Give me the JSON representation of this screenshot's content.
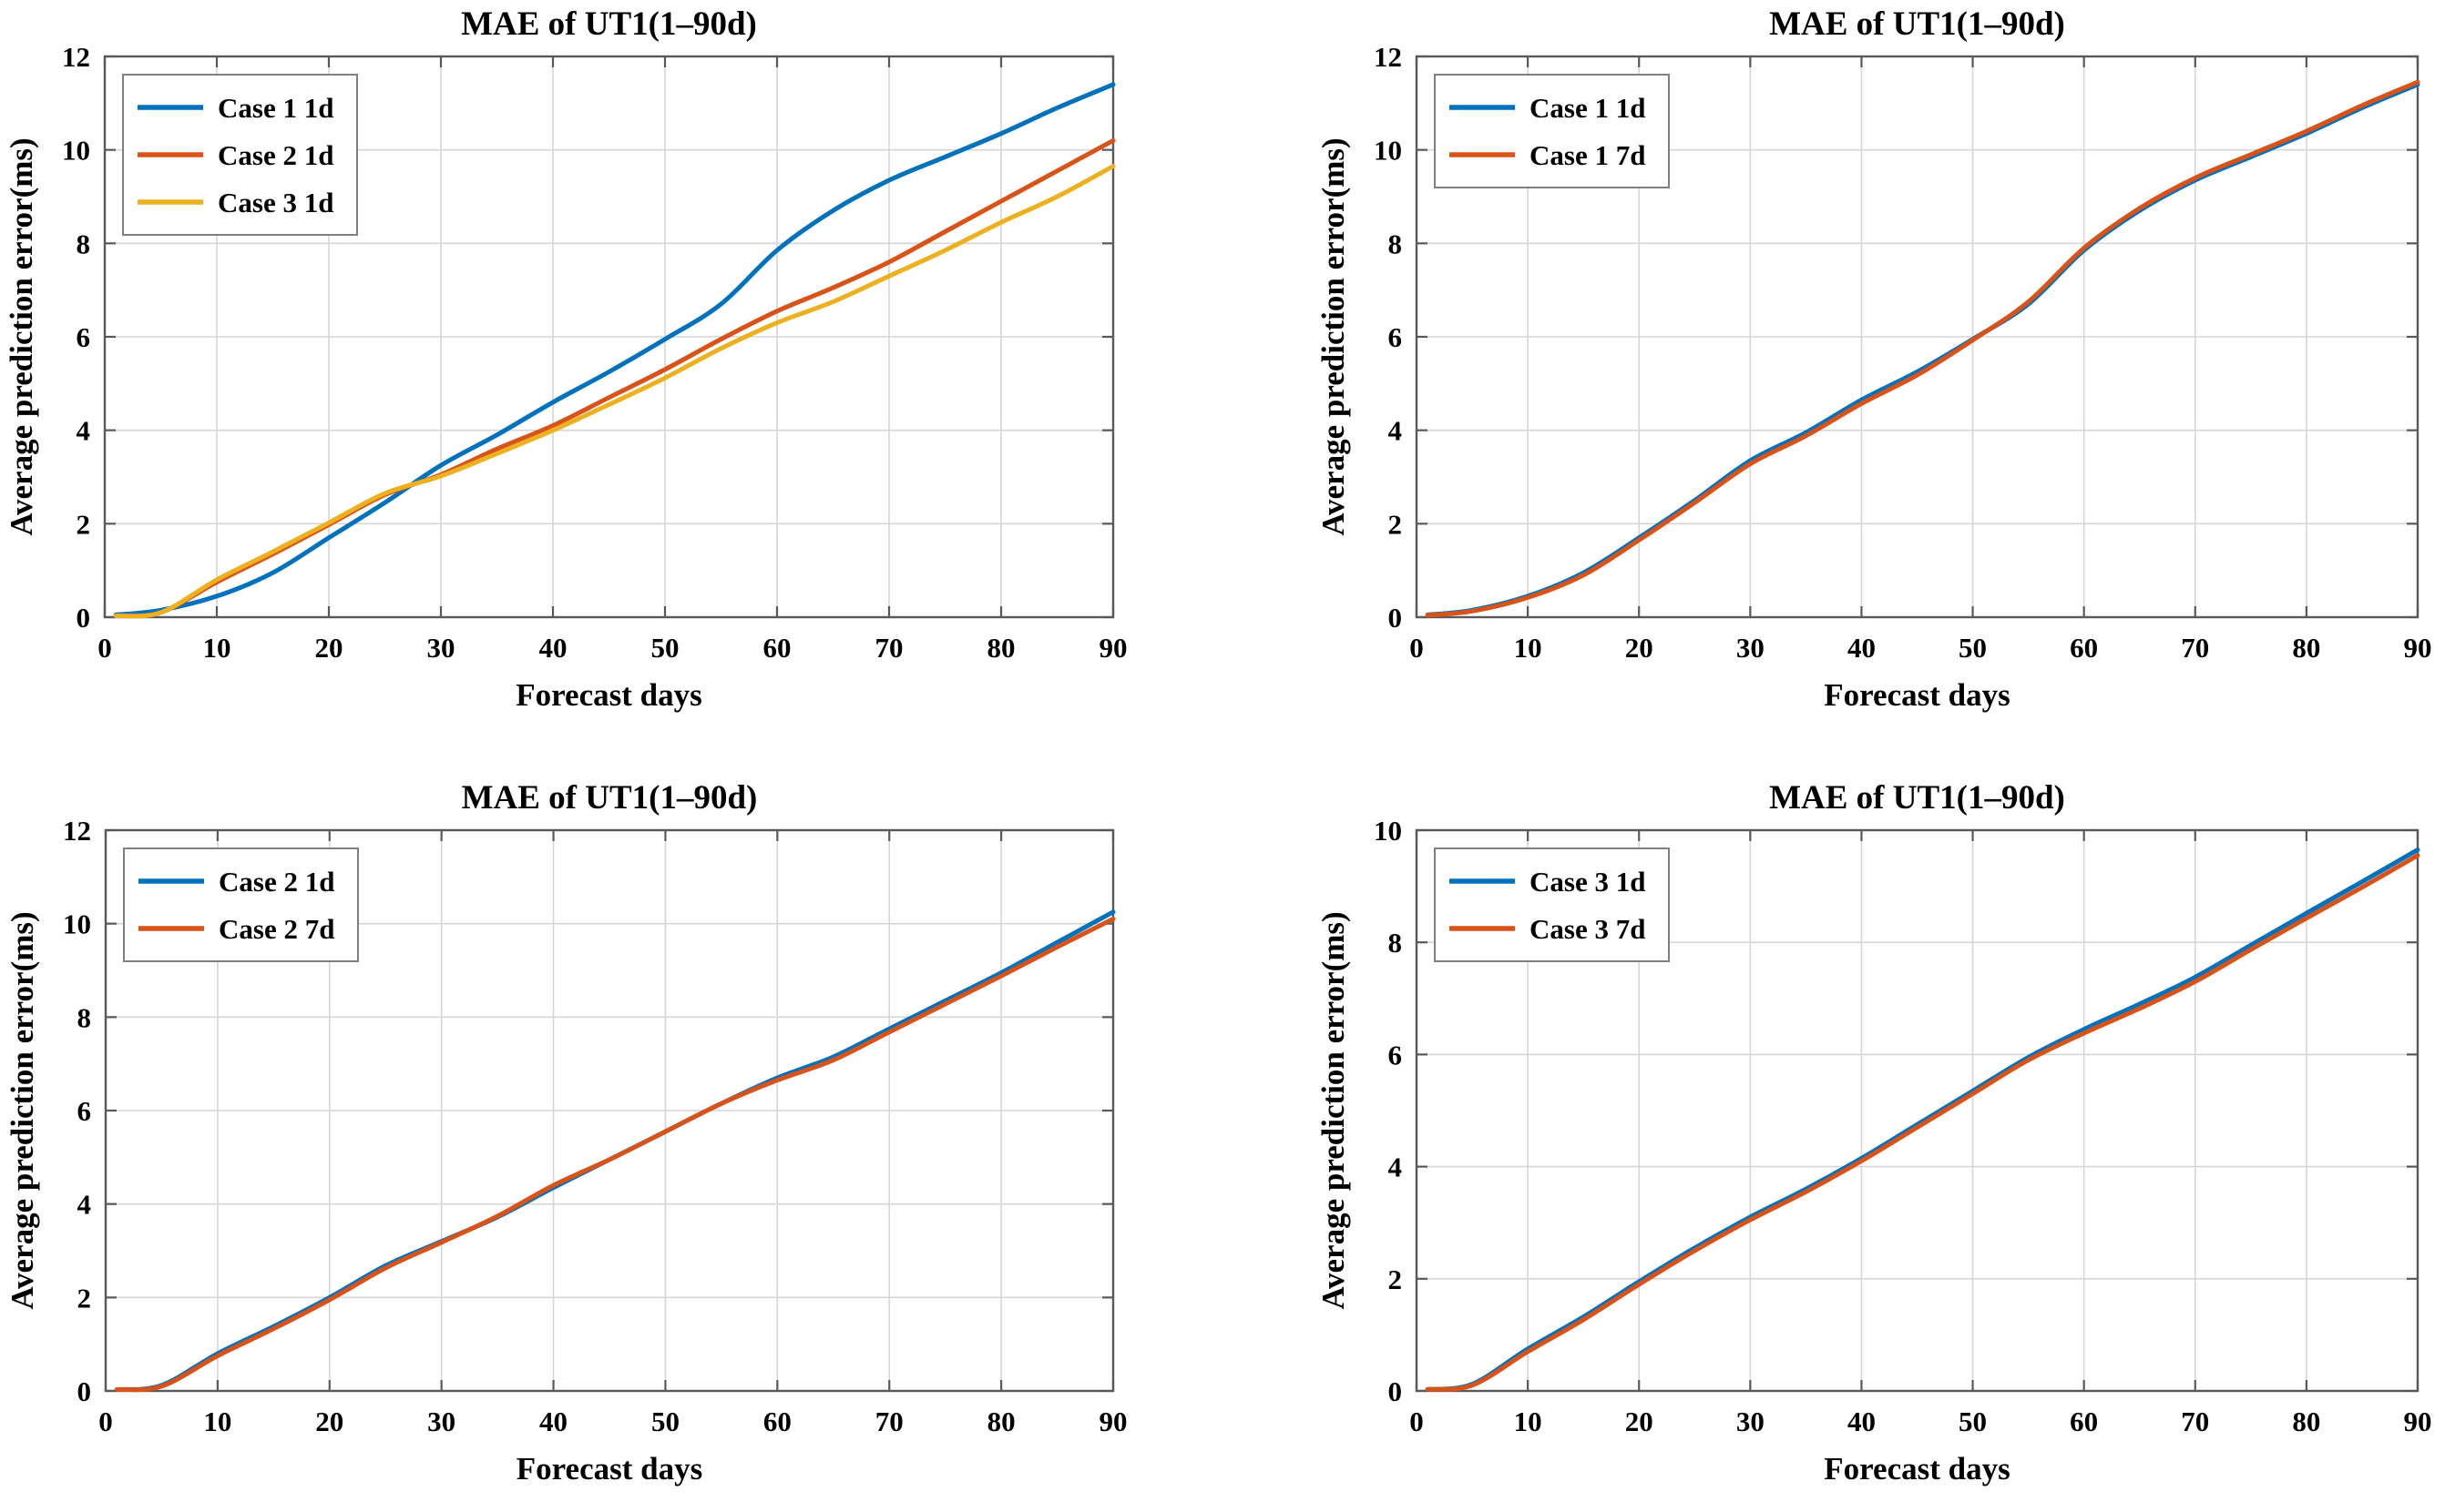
{
  "page": {
    "background": "#ffffff",
    "text_color": "#000000",
    "axis_color": "#595959",
    "grid_color": "#d6d6d6",
    "legend_border_color": "#7f7f7f"
  },
  "chart_data": [
    {
      "type": "line",
      "title": "MAE of UT1(1–90d)",
      "xlabel": "Forecast days",
      "ylabel": "Average prediction error(ms)",
      "xlim": [
        0,
        90
      ],
      "ylim": [
        0,
        12
      ],
      "xticks": [
        0,
        10,
        20,
        30,
        40,
        50,
        60,
        70,
        80,
        90
      ],
      "yticks": [
        0,
        2,
        4,
        6,
        8,
        10,
        12
      ],
      "grid": true,
      "legend_position": "top-left",
      "x": [
        1,
        5,
        10,
        15,
        20,
        25,
        30,
        35,
        40,
        45,
        50,
        55,
        60,
        65,
        70,
        75,
        80,
        85,
        90
      ],
      "series": [
        {
          "name": "Case 1 1d",
          "color": "#0072BD",
          "values": [
            0.05,
            0.15,
            0.45,
            0.95,
            1.7,
            2.45,
            3.25,
            3.9,
            4.6,
            5.25,
            5.95,
            6.7,
            7.85,
            8.7,
            9.35,
            9.85,
            10.35,
            10.9,
            11.4
          ]
        },
        {
          "name": "Case 2 1d",
          "color": "#D95319",
          "values": [
            0.03,
            0.1,
            0.75,
            1.35,
            1.98,
            2.62,
            3.05,
            3.6,
            4.1,
            4.7,
            5.3,
            5.95,
            6.55,
            7.05,
            7.6,
            8.25,
            8.9,
            9.55,
            10.2
          ]
        },
        {
          "name": "Case 3 1d",
          "color": "#EDB120",
          "values": [
            0.03,
            0.1,
            0.8,
            1.4,
            2.02,
            2.65,
            3.02,
            3.5,
            4.0,
            4.55,
            5.12,
            5.75,
            6.3,
            6.75,
            7.3,
            7.85,
            8.45,
            9.0,
            9.65
          ]
        }
      ]
    },
    {
      "type": "line",
      "title": "MAE of UT1(1–90d)",
      "xlabel": "Forecast days",
      "ylabel": "Average prediction error(ms)",
      "xlim": [
        0,
        90
      ],
      "ylim": [
        0,
        12
      ],
      "xticks": [
        0,
        10,
        20,
        30,
        40,
        50,
        60,
        70,
        80,
        90
      ],
      "yticks": [
        0,
        2,
        4,
        6,
        8,
        10,
        12
      ],
      "grid": true,
      "legend_position": "top-left",
      "x": [
        1,
        5,
        10,
        15,
        20,
        25,
        30,
        35,
        40,
        45,
        50,
        55,
        60,
        65,
        70,
        75,
        80,
        85,
        90
      ],
      "series": [
        {
          "name": "Case 1 1d",
          "color": "#0072BD",
          "values": [
            0.05,
            0.15,
            0.45,
            0.95,
            1.7,
            2.5,
            3.35,
            3.95,
            4.65,
            5.25,
            5.95,
            6.7,
            7.85,
            8.7,
            9.35,
            9.85,
            10.35,
            10.9,
            11.4
          ]
        },
        {
          "name": "Case 1 7d",
          "color": "#D95319",
          "values": [
            0.04,
            0.13,
            0.42,
            0.9,
            1.65,
            2.45,
            3.28,
            3.88,
            4.57,
            5.18,
            5.93,
            6.75,
            7.9,
            8.75,
            9.4,
            9.9,
            10.4,
            10.95,
            11.45
          ]
        }
      ]
    },
    {
      "type": "line",
      "title": "MAE of UT1(1–90d)",
      "xlabel": "Forecast days",
      "ylabel": "Average prediction error(ms)",
      "xlim": [
        0,
        90
      ],
      "ylim": [
        0,
        12
      ],
      "xticks": [
        0,
        10,
        20,
        30,
        40,
        50,
        60,
        70,
        80,
        90
      ],
      "yticks": [
        0,
        2,
        4,
        6,
        8,
        10,
        12
      ],
      "grid": true,
      "legend_position": "top-left",
      "x": [
        1,
        5,
        10,
        15,
        20,
        25,
        30,
        35,
        40,
        45,
        50,
        55,
        60,
        65,
        70,
        75,
        80,
        85,
        90
      ],
      "series": [
        {
          "name": "Case 2 1d",
          "color": "#0072BD",
          "values": [
            0.03,
            0.12,
            0.8,
            1.38,
            2.0,
            2.68,
            3.2,
            3.72,
            4.35,
            4.95,
            5.55,
            6.15,
            6.7,
            7.15,
            7.75,
            8.35,
            8.95,
            9.6,
            10.25
          ]
        },
        {
          "name": "Case 2 7d",
          "color": "#D95319",
          "values": [
            0.03,
            0.1,
            0.75,
            1.33,
            1.95,
            2.63,
            3.18,
            3.74,
            4.4,
            4.95,
            5.55,
            6.15,
            6.65,
            7.08,
            7.68,
            8.28,
            8.88,
            9.5,
            10.1
          ]
        }
      ]
    },
    {
      "type": "line",
      "title": "MAE of UT1(1–90d)",
      "xlabel": "Forecast days",
      "ylabel": "Average prediction error(ms)",
      "xlim": [
        0,
        90
      ],
      "ylim": [
        0,
        10
      ],
      "xticks": [
        0,
        10,
        20,
        30,
        40,
        50,
        60,
        70,
        80,
        90
      ],
      "yticks": [
        0,
        2,
        4,
        6,
        8,
        10
      ],
      "grid": true,
      "legend_position": "top-left",
      "x": [
        1,
        5,
        10,
        15,
        20,
        25,
        30,
        35,
        40,
        45,
        50,
        55,
        60,
        65,
        70,
        75,
        80,
        85,
        90
      ],
      "series": [
        {
          "name": "Case 3 1d",
          "color": "#0072BD",
          "values": [
            0.03,
            0.12,
            0.75,
            1.32,
            1.95,
            2.55,
            3.1,
            3.6,
            4.15,
            4.75,
            5.35,
            5.95,
            6.45,
            6.9,
            7.38,
            7.95,
            8.52,
            9.08,
            9.65
          ]
        },
        {
          "name": "Case 3 7d",
          "color": "#D95319",
          "values": [
            0.03,
            0.1,
            0.7,
            1.27,
            1.9,
            2.5,
            3.05,
            3.55,
            4.1,
            4.7,
            5.3,
            5.9,
            6.38,
            6.82,
            7.3,
            7.87,
            8.43,
            8.98,
            9.55
          ]
        }
      ]
    }
  ]
}
